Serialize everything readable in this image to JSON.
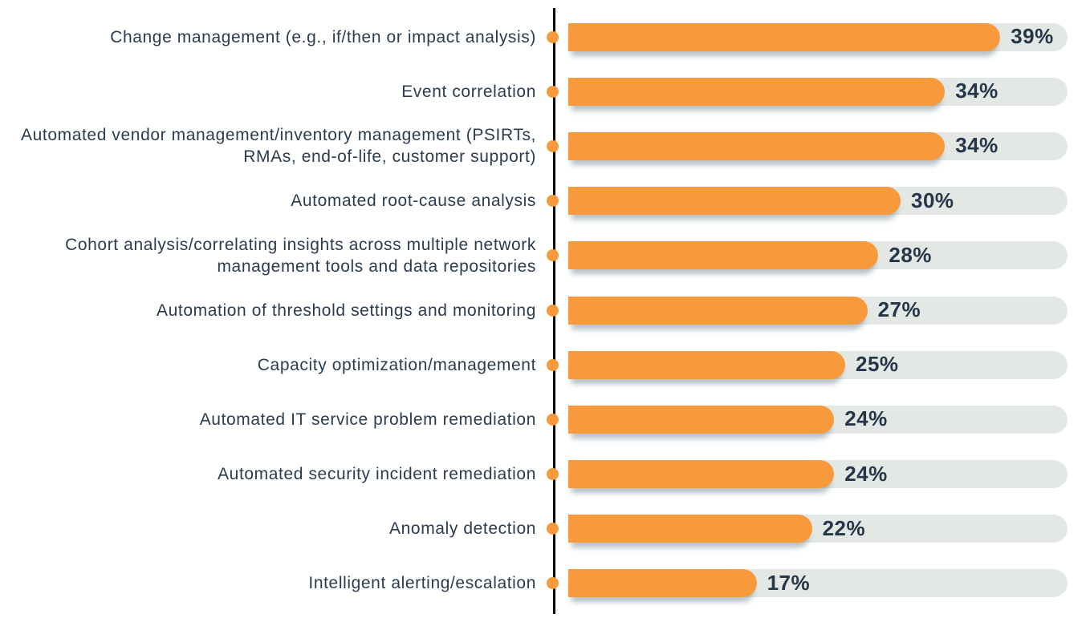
{
  "chart_data": {
    "type": "bar",
    "orientation": "horizontal",
    "title": "",
    "xlabel": "",
    "ylabel": "",
    "categories": [
      "Change management (e.g., if/then or impact analysis)",
      "Event correlation",
      "Automated vendor management/inventory management (PSIRTs, RMAs, end-of-life, customer support)",
      "Automated root-cause analysis",
      "Cohort analysis/correlating insights across multiple network management tools and data repositories",
      "Automation of threshold settings and monitoring",
      "Capacity optimization/management",
      "Automated IT service problem remediation",
      "Automated security incident remediation",
      "Anomaly detection",
      "Intelligent alerting/escalation"
    ],
    "values": [
      39,
      34,
      34,
      30,
      28,
      27,
      25,
      24,
      24,
      22,
      17
    ],
    "value_labels": [
      "39%",
      "34%",
      "34%",
      "30%",
      "28%",
      "27%",
      "25%",
      "24%",
      "24%",
      "22%",
      "17%"
    ],
    "value_suffix": "%",
    "xlim": [
      0,
      45
    ],
    "grid": false,
    "legend": false,
    "marker": "dot-on-axis",
    "colors": {
      "bar": "#F8993B",
      "track": "#E3E8E5",
      "dot": "#F8993B",
      "axis_line": "#0B0B0B",
      "category_text": "#2C3C4F",
      "value_text": "#26364A"
    }
  }
}
